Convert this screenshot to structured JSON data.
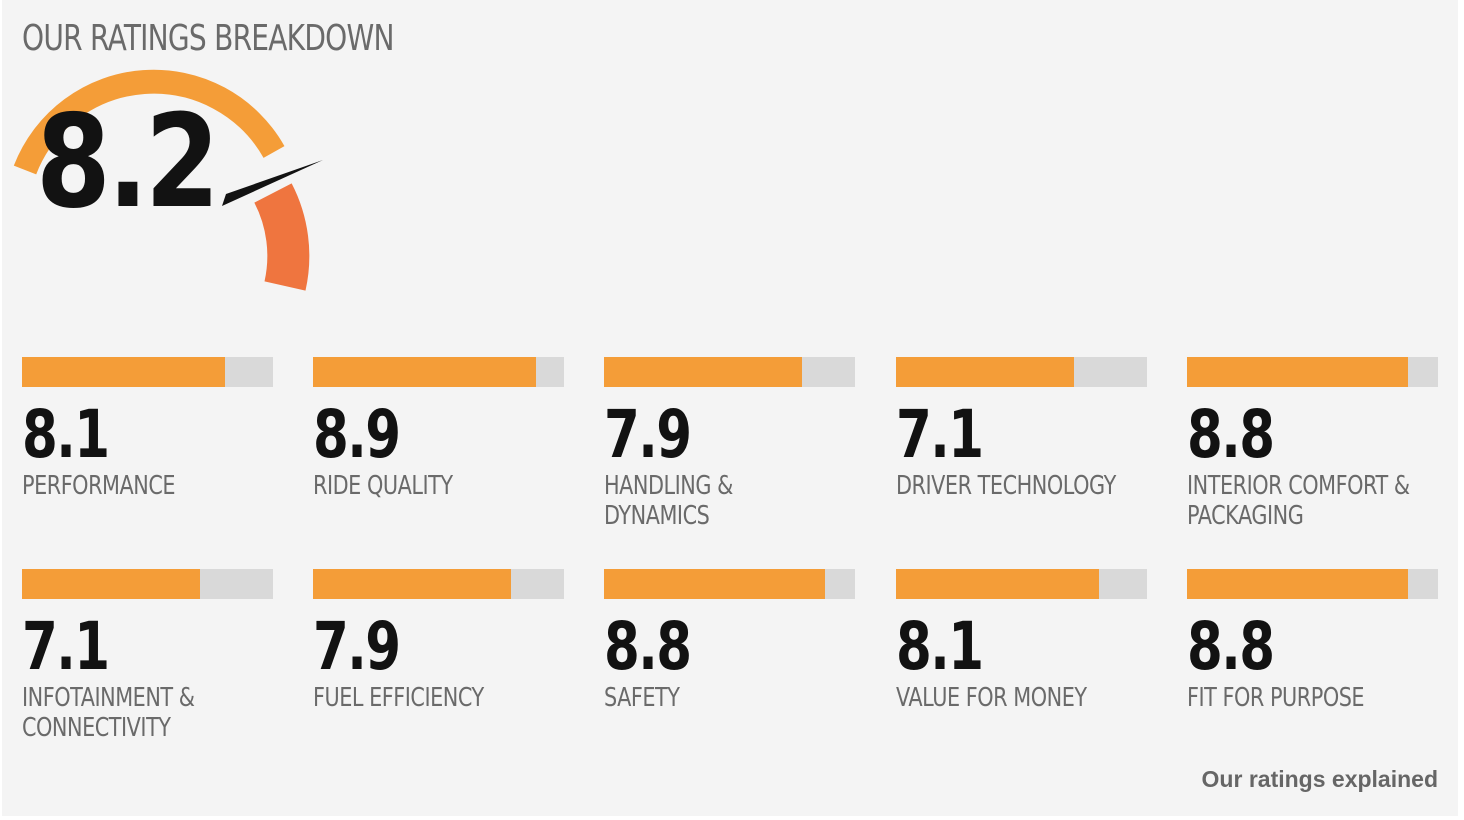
{
  "header": {
    "title": "OUR RATINGS BREAKDOWN"
  },
  "overall": {
    "score": "8.2",
    "value": 8.2,
    "max": 10
  },
  "colors": {
    "panel_background": "#f4f4f4",
    "bar_fill": "#f49d38",
    "bar_track": "#d9d9d9",
    "gauge_orange": "#f49d38",
    "gauge_accent": "#ef753f",
    "score_text": "#121212",
    "label_text": "#6a6a6a"
  },
  "ratings": [
    {
      "score": "8.1",
      "value": 8.1,
      "label": "PERFORMANCE"
    },
    {
      "score": "8.9",
      "value": 8.9,
      "label": "RIDE QUALITY"
    },
    {
      "score": "7.9",
      "value": 7.9,
      "label": "HANDLING & DYNAMICS"
    },
    {
      "score": "7.1",
      "value": 7.1,
      "label": "DRIVER TECHNOLOGY"
    },
    {
      "score": "8.8",
      "value": 8.8,
      "label": "INTERIOR COMFORT & PACKAGING"
    },
    {
      "score": "7.1",
      "value": 7.1,
      "label": "INFOTAINMENT & CONNECTIVITY"
    },
    {
      "score": "7.9",
      "value": 7.9,
      "label": "FUEL EFFICIENCY"
    },
    {
      "score": "8.8",
      "value": 8.8,
      "label": "SAFETY"
    },
    {
      "score": "8.1",
      "value": 8.1,
      "label": "VALUE FOR MONEY"
    },
    {
      "score": "8.8",
      "value": 8.8,
      "label": "FIT FOR PURPOSE"
    }
  ],
  "footer": {
    "link_label": "Our ratings explained"
  }
}
